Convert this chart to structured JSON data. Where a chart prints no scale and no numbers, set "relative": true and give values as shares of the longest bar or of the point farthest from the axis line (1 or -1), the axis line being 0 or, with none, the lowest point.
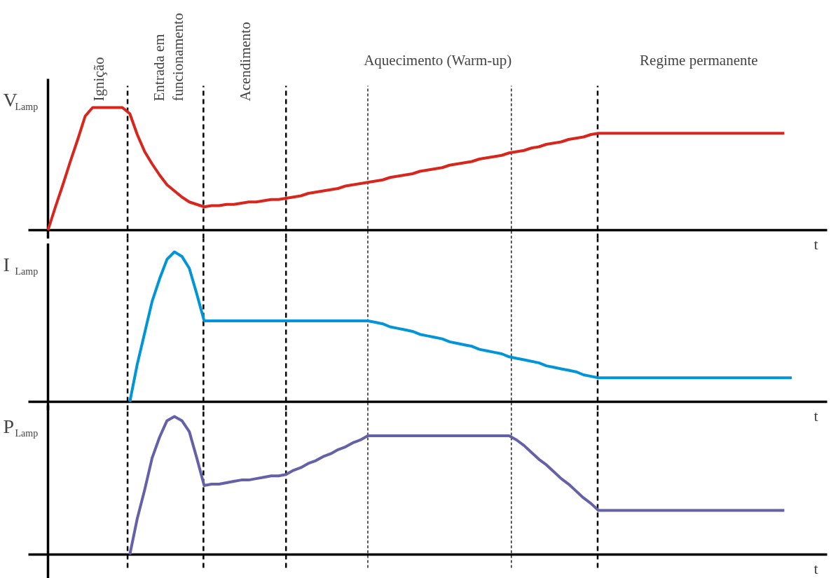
{
  "chart_data": [
    {
      "type": "line",
      "relative": true,
      "tick_labels": false,
      "xlabel": "t",
      "ylabel": "V$_{Lamp}$",
      "categories": [
        null,
        null,
        null,
        null,
        null,
        null,
        null,
        null,
        null,
        null,
        null,
        null,
        null,
        null,
        null,
        null,
        null,
        null,
        null,
        null,
        null,
        null,
        null,
        null,
        null,
        null,
        null,
        null,
        null,
        null,
        null,
        null,
        null,
        null,
        null,
        null,
        null,
        null,
        null,
        null,
        null,
        null,
        null,
        null,
        null,
        null,
        null,
        null,
        null,
        null,
        null,
        null,
        null,
        null,
        null,
        null,
        null,
        null,
        null,
        null,
        null,
        null,
        null,
        null,
        null,
        null,
        null,
        null,
        null,
        null,
        null,
        null,
        null,
        null,
        null,
        null,
        null,
        null,
        null,
        null,
        null,
        null,
        null,
        null,
        null,
        null,
        null,
        null,
        null,
        null,
        null,
        null,
        null,
        null,
        null,
        null,
        null,
        null,
        null,
        null,
        null,
        null,
        null,
        null,
        null
      ],
      "annotations": [
        "Ignição",
        "Entrada em\nfuncionamento",
        "Acendimento",
        "Aquecimento (Warm-up)",
        "Regime permanente"
      ],
      "series": [
        {
          "color": "#d9261c",
          "values": [
            0,
            0.19,
            0.37,
            0.56,
            0.74,
            0.93,
            1,
            1,
            1,
            1,
            1,
            0.95,
            0.78,
            0.64,
            0.54,
            0.45,
            0.37,
            0.32,
            0.27,
            0.23,
            0.21,
            0.19,
            0.2,
            0.2,
            0.21,
            0.21,
            0.22,
            0.23,
            0.23,
            0.24,
            0.25,
            0.25,
            0.26,
            0.27,
            0.28,
            0.3,
            0.31,
            0.32,
            0.33,
            0.34,
            0.36,
            0.37,
            0.38,
            0.39,
            0.4,
            0.41,
            0.43,
            0.44,
            0.45,
            0.46,
            0.48,
            0.49,
            0.5,
            0.51,
            0.53,
            0.54,
            0.55,
            0.56,
            0.58,
            0.59,
            0.6,
            0.61,
            0.63,
            0.64,
            0.65,
            0.67,
            0.68,
            0.7,
            0.71,
            0.72,
            0.74,
            0.75,
            0.76,
            0.78,
            0.79,
            0.79,
            0.79,
            0.79,
            0.79,
            0.79,
            0.79,
            0.79,
            0.79,
            0.79,
            0.79,
            0.79,
            0.79,
            0.79,
            0.79,
            0.79,
            0.79,
            0.79,
            0.79,
            0.79,
            0.79,
            0.79,
            0.79,
            0.79,
            0.79,
            0.79,
            null,
            null,
            null,
            null,
            null
          ]
        }
      ]
    },
    {
      "type": "line",
      "relative": true,
      "tick_labels": false,
      "xlabel": "t",
      "ylabel": "I$_{Lamp}$",
      "categories": [
        null,
        null,
        null,
        null,
        null,
        null,
        null,
        null,
        null,
        null,
        null,
        null,
        null,
        null,
        null,
        null,
        null,
        null,
        null,
        null,
        null,
        null,
        null,
        null,
        null,
        null,
        null,
        null,
        null,
        null,
        null,
        null,
        null,
        null,
        null,
        null,
        null,
        null,
        null,
        null,
        null,
        null,
        null,
        null,
        null,
        null,
        null,
        null,
        null,
        null,
        null,
        null,
        null,
        null,
        null,
        null,
        null,
        null,
        null,
        null,
        null,
        null,
        null,
        null,
        null,
        null,
        null,
        null,
        null,
        null,
        null,
        null,
        null,
        null,
        null,
        null,
        null,
        null,
        null,
        null,
        null,
        null,
        null,
        null,
        null,
        null,
        null,
        null,
        null,
        null,
        null,
        null,
        null,
        null,
        null,
        null,
        null,
        null,
        null,
        null,
        null,
        null,
        null,
        null,
        null
      ],
      "series": [
        {
          "color": "#0095d9",
          "values": [
            null,
            null,
            null,
            null,
            null,
            null,
            null,
            null,
            null,
            null,
            null,
            0,
            0.25,
            0.46,
            0.67,
            0.82,
            0.95,
            1,
            0.97,
            0.89,
            0.72,
            0.54,
            0.54,
            0.54,
            0.54,
            0.54,
            0.54,
            0.54,
            0.54,
            0.54,
            0.54,
            0.54,
            0.54,
            0.54,
            0.54,
            0.54,
            0.54,
            0.54,
            0.54,
            0.54,
            0.54,
            0.54,
            0.54,
            0.54,
            0.53,
            0.52,
            0.5,
            0.49,
            0.48,
            0.47,
            0.45,
            0.44,
            0.43,
            0.42,
            0.4,
            0.39,
            0.38,
            0.37,
            0.35,
            0.34,
            0.33,
            0.32,
            0.3,
            0.29,
            0.28,
            0.27,
            0.26,
            0.24,
            0.23,
            0.22,
            0.21,
            0.2,
            0.18,
            0.17,
            0.16,
            0.16,
            0.16,
            0.16,
            0.16,
            0.16,
            0.16,
            0.16,
            0.16,
            0.16,
            0.16,
            0.16,
            0.16,
            0.16,
            0.16,
            0.16,
            0.16,
            0.16,
            0.16,
            0.16,
            0.16,
            0.16,
            0.16,
            0.16,
            0.16,
            0.16,
            0.16,
            null,
            null,
            null,
            null
          ]
        }
      ]
    },
    {
      "type": "line",
      "relative": true,
      "tick_labels": false,
      "xlabel": "t",
      "ylabel": "P$_{Lamp}$",
      "categories": [
        null,
        null,
        null,
        null,
        null,
        null,
        null,
        null,
        null,
        null,
        null,
        null,
        null,
        null,
        null,
        null,
        null,
        null,
        null,
        null,
        null,
        null,
        null,
        null,
        null,
        null,
        null,
        null,
        null,
        null,
        null,
        null,
        null,
        null,
        null,
        null,
        null,
        null,
        null,
        null,
        null,
        null,
        null,
        null,
        null,
        null,
        null,
        null,
        null,
        null,
        null,
        null,
        null,
        null,
        null,
        null,
        null,
        null,
        null,
        null,
        null,
        null,
        null,
        null,
        null,
        null,
        null,
        null,
        null,
        null,
        null,
        null,
        null,
        null,
        null,
        null,
        null,
        null,
        null,
        null,
        null,
        null,
        null,
        null,
        null,
        null,
        null,
        null,
        null,
        null,
        null,
        null,
        null,
        null,
        null,
        null,
        null,
        null,
        null,
        null,
        null,
        null,
        null,
        null,
        null
      ],
      "series": [
        {
          "color": "#6461a8",
          "values": [
            null,
            null,
            null,
            null,
            null,
            null,
            null,
            null,
            null,
            null,
            null,
            0,
            0.26,
            0.47,
            0.7,
            0.85,
            0.97,
            1,
            0.97,
            0.89,
            0.7,
            0.5,
            0.51,
            0.51,
            0.52,
            0.53,
            0.54,
            0.54,
            0.55,
            0.56,
            0.57,
            0.57,
            0.58,
            0.61,
            0.63,
            0.66,
            0.68,
            0.71,
            0.73,
            0.76,
            0.78,
            0.81,
            0.83,
            0.86,
            0.86,
            0.86,
            0.86,
            0.86,
            0.86,
            0.86,
            0.86,
            0.86,
            0.86,
            0.86,
            0.86,
            0.86,
            0.86,
            0.86,
            0.86,
            0.86,
            0.86,
            0.86,
            0.86,
            0.83,
            0.79,
            0.74,
            0.69,
            0.65,
            0.6,
            0.55,
            0.51,
            0.46,
            0.41,
            0.37,
            0.32,
            0.32,
            0.32,
            0.32,
            0.32,
            0.32,
            0.32,
            0.32,
            0.32,
            0.32,
            0.32,
            0.32,
            0.32,
            0.32,
            0.32,
            0.32,
            0.32,
            0.32,
            0.32,
            0.32,
            0.32,
            0.32,
            0.32,
            0.32,
            0.32,
            0.32,
            null,
            null,
            null,
            null,
            null
          ]
        }
      ]
    }
  ]
}
